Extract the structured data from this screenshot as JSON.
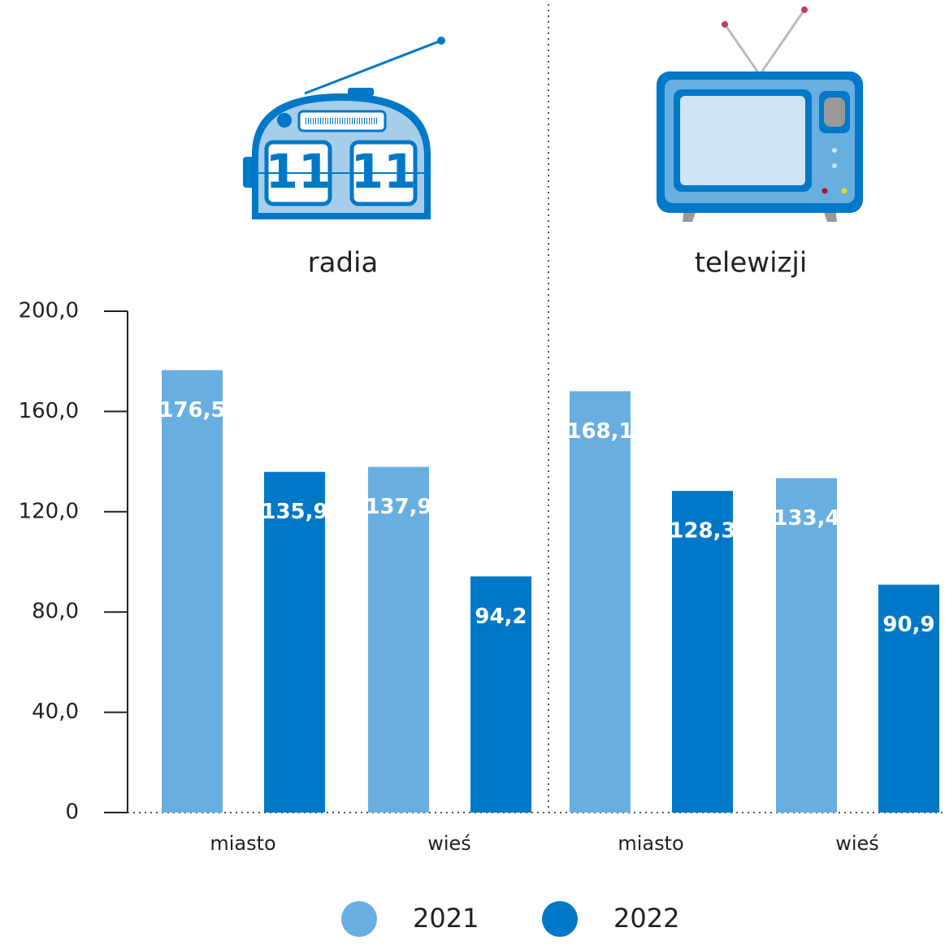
{
  "radio_display": [
    "11",
    "11"
  ],
  "chart_data": {
    "type": "bar",
    "groups": [
      {
        "label": "radia",
        "categories": [
          "miasto",
          "wieś"
        ]
      },
      {
        "label": "telewizji",
        "categories": [
          "miasto",
          "wieś"
        ]
      }
    ],
    "series": [
      {
        "name": "2021",
        "color": "#69aee0",
        "values": [
          176.5,
          137.9,
          168.1,
          133.4
        ],
        "value_labels": [
          "176,5",
          "137,9",
          "168,1",
          "133,4"
        ]
      },
      {
        "name": "2022",
        "color": "#0078c8",
        "values": [
          135.9,
          94.2,
          128.3,
          90.9
        ],
        "value_labels": [
          "135,9",
          "94,2",
          "128,3",
          "90,9"
        ]
      }
    ],
    "ylim": [
      0,
      200
    ],
    "yticks": [
      0,
      {
        "value": 40,
        "label": "40,0"
      },
      {
        "value": 80,
        "label": "80,0"
      },
      {
        "value": 120,
        "label": "120,0"
      },
      {
        "value": 160,
        "label": "160,0"
      },
      {
        "value": 200,
        "label": "200,0"
      }
    ]
  }
}
